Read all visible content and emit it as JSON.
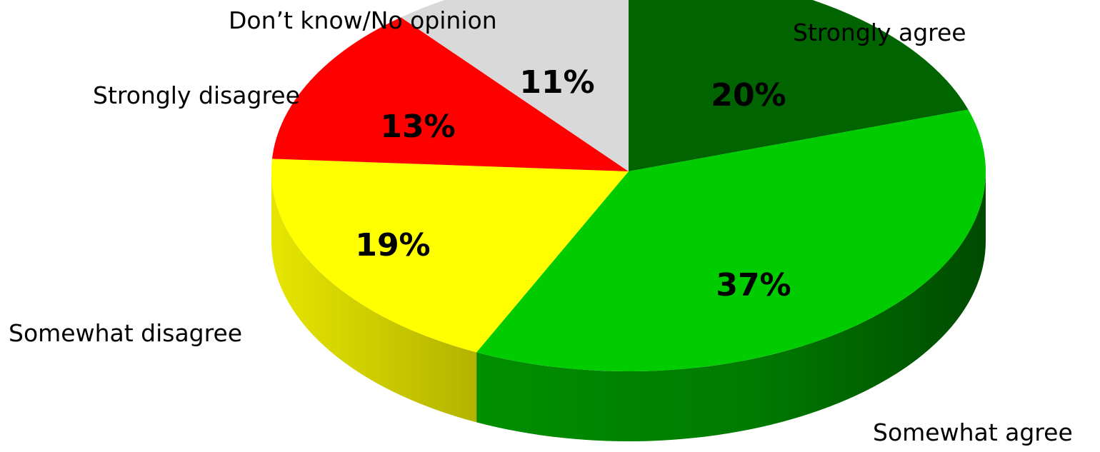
{
  "chart_data": {
    "type": "pie",
    "style": "3d",
    "start": "top, clockwise",
    "slices": [
      {
        "label": "Strongly agree",
        "value": 20,
        "value_label": "20%",
        "color": "#006400",
        "side_color": "#004d00"
      },
      {
        "label": "Somewhat agree",
        "value": 37,
        "value_label": "37%",
        "color": "#00cc00",
        "side_color": "#009900"
      },
      {
        "label": "Somewhat disagree",
        "value": 19,
        "value_label": "19%",
        "color": "#ffff00",
        "side_color": "#cccc00"
      },
      {
        "label": "Strongly disagree",
        "value": 13,
        "value_label": "13%",
        "color": "#ff0000",
        "side_color": "#b30000"
      },
      {
        "label": "Don’t know/No opinion",
        "value": 11,
        "value_label": "11%",
        "color": "#d9d9d9",
        "side_color": "#a6a6a6"
      }
    ]
  }
}
